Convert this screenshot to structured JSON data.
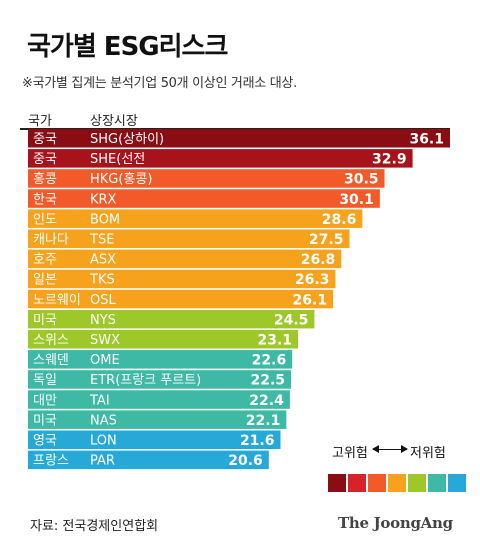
{
  "title": "국가별 ESG리스크",
  "note": "※국가별 집계는 분석기업 50개 이상인 거래소 대상.",
  "headers": {
    "country": "국가",
    "exchange": "상장시장"
  },
  "legend": {
    "high": "고위험",
    "low": "저위험",
    "colors": [
      "#8b0d14",
      "#d72328",
      "#f25a2a",
      "#f7a21c",
      "#9ec72a",
      "#3db9a6",
      "#27a9d8"
    ]
  },
  "source": "자료: 전국경제인연합회",
  "logo": "The JoongAng",
  "chart_data": {
    "type": "bar",
    "orientation": "horizontal",
    "categories": [
      "중국 SHG(상하이)",
      "중국 SHE(선전",
      "홍콩 HKG(홍콩)",
      "한국 KRX",
      "인도 BOM",
      "캐나다 TSE",
      "호주 ASX",
      "일본 TKS",
      "노르웨이 OSL",
      "미국 NYS",
      "스위스 SWX",
      "스웨덴 OME",
      "독일 ETR(프랑크 푸르트)",
      "대만 TAI",
      "미국 NAS",
      "영국 LON",
      "프랑스 PAR"
    ],
    "rows": [
      {
        "country": "중국",
        "exchange": "SHG(상하이)",
        "value": 36.1,
        "color": "#8b0d14"
      },
      {
        "country": "중국",
        "exchange": "SHE(선전",
        "value": 32.9,
        "color": "#a8121b"
      },
      {
        "country": "홍콩",
        "exchange": "HKG(홍콩)",
        "value": 30.5,
        "color": "#f25a2a"
      },
      {
        "country": "한국",
        "exchange": "KRX",
        "value": 30.1,
        "color": "#f25a2a"
      },
      {
        "country": "인도",
        "exchange": "BOM",
        "value": 28.6,
        "color": "#f7a21c"
      },
      {
        "country": "캐나다",
        "exchange": "TSE",
        "value": 27.5,
        "color": "#f7a21c"
      },
      {
        "country": "호주",
        "exchange": "ASX",
        "value": 26.8,
        "color": "#f7a21c"
      },
      {
        "country": "일본",
        "exchange": "TKS",
        "value": 26.3,
        "color": "#f7a21c"
      },
      {
        "country": "노르웨이",
        "exchange": "OSL",
        "value": 26.1,
        "color": "#f7a21c"
      },
      {
        "country": "미국",
        "exchange": "NYS",
        "value": 24.5,
        "color": "#9ec72a"
      },
      {
        "country": "스위스",
        "exchange": "SWX",
        "value": 23.1,
        "color": "#9ec72a"
      },
      {
        "country": "스웨덴",
        "exchange": "OME",
        "value": 22.6,
        "color": "#3db9a6"
      },
      {
        "country": "독일",
        "exchange": "ETR(프랑크 푸르트)",
        "value": 22.5,
        "color": "#3db9a6"
      },
      {
        "country": "대만",
        "exchange": "TAI",
        "value": 22.4,
        "color": "#3db9a6"
      },
      {
        "country": "미국",
        "exchange": "NAS",
        "value": 22.1,
        "color": "#3db9a6"
      },
      {
        "country": "영국",
        "exchange": "LON",
        "value": 21.6,
        "color": "#27a9d8"
      },
      {
        "country": "프랑스",
        "exchange": "PAR",
        "value": 20.6,
        "color": "#27a9d8"
      }
    ],
    "values": [
      36.1,
      32.9,
      30.5,
      30.1,
      28.6,
      27.5,
      26.8,
      26.3,
      26.1,
      24.5,
      23.1,
      22.6,
      22.5,
      22.4,
      22.1,
      21.6,
      20.6
    ],
    "xlim": [
      0,
      36.1
    ],
    "grid": false,
    "legend_position": "bottom-right"
  }
}
